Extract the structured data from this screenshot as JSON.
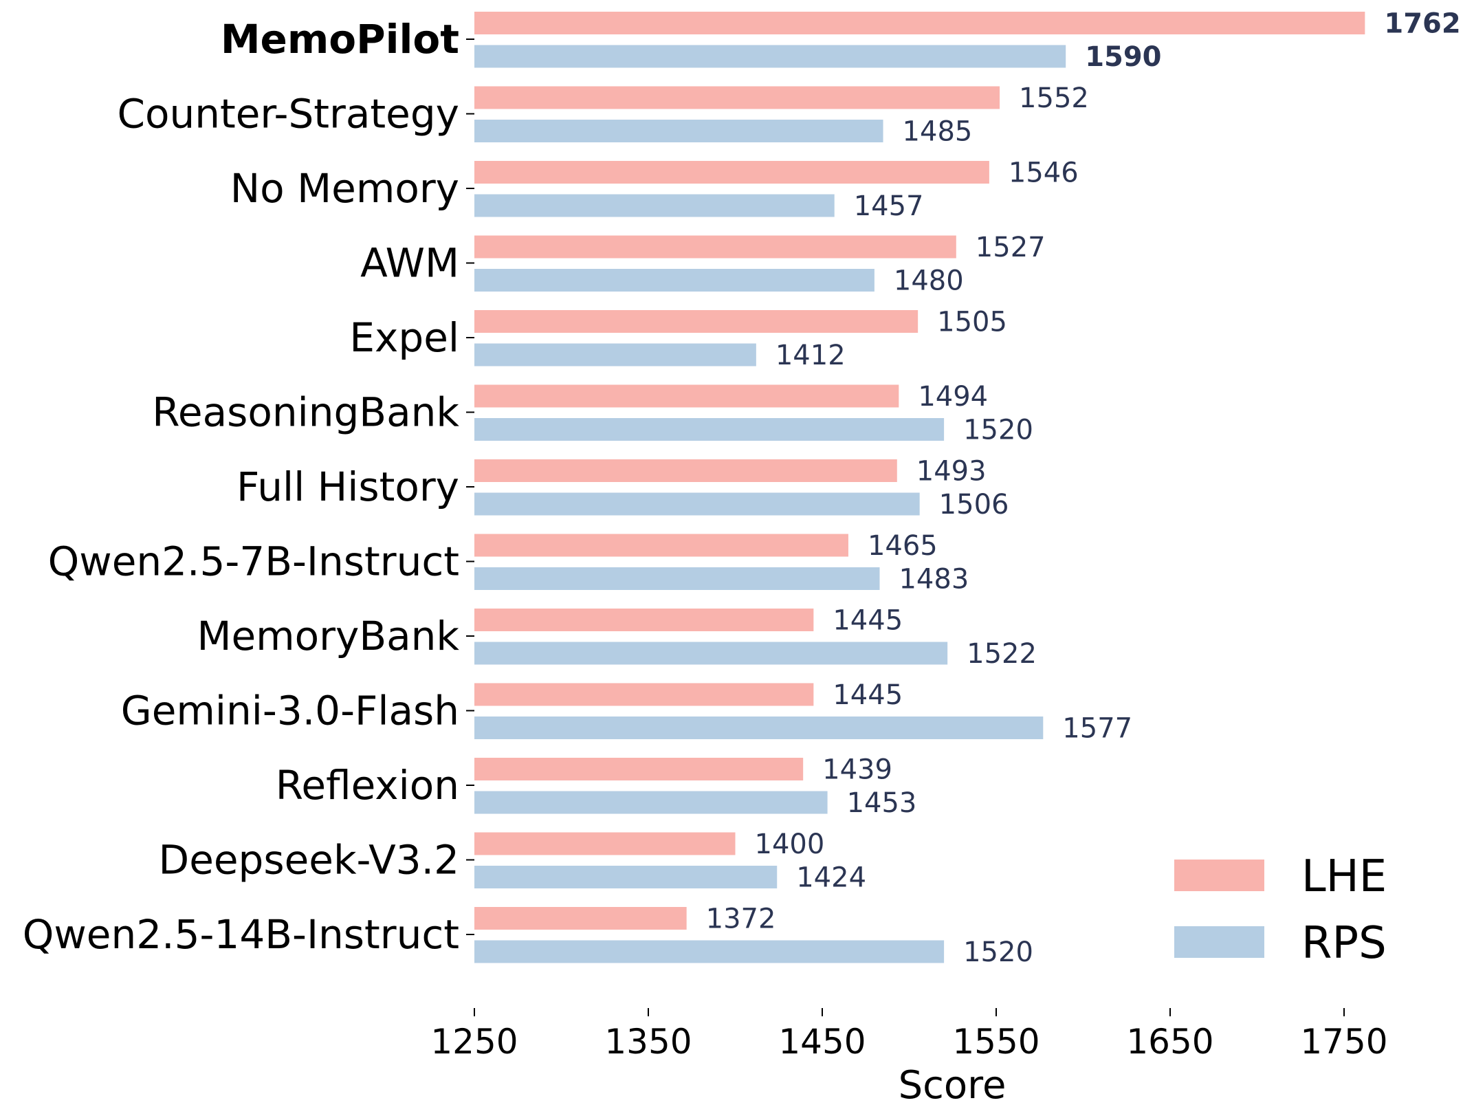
{
  "chart_data": {
    "type": "bar",
    "orientation": "horizontal",
    "categories": [
      "MemoPilot",
      "Counter-Strategy",
      "No Memory",
      "AWM",
      "Expel",
      "ReasoningBank",
      "Full History",
      "Qwen2.5-7B-Instruct",
      "MemoryBank",
      "Gemini-3.0-Flash",
      "Reflexion",
      "Deepseek-V3.2",
      "Qwen2.5-14B-Instruct"
    ],
    "highlight_category": "MemoPilot",
    "series": [
      {
        "name": "LHE",
        "color": "#f9b3ad",
        "values": [
          1762,
          1552,
          1546,
          1527,
          1505,
          1494,
          1493,
          1465,
          1445,
          1445,
          1439,
          1400,
          1372
        ]
      },
      {
        "name": "RPS",
        "color": "#b4cde3",
        "values": [
          1590,
          1485,
          1457,
          1480,
          1412,
          1520,
          1506,
          1483,
          1522,
          1577,
          1453,
          1424,
          1520
        ]
      }
    ],
    "xlabel": "Score",
    "ylabel": "",
    "xlim": [
      1250,
      1790
    ],
    "xticks": [
      "1250",
      "1350",
      "1450",
      "1550",
      "1650",
      "1750"
    ],
    "grid": false,
    "legend_position": "bottom-right"
  }
}
